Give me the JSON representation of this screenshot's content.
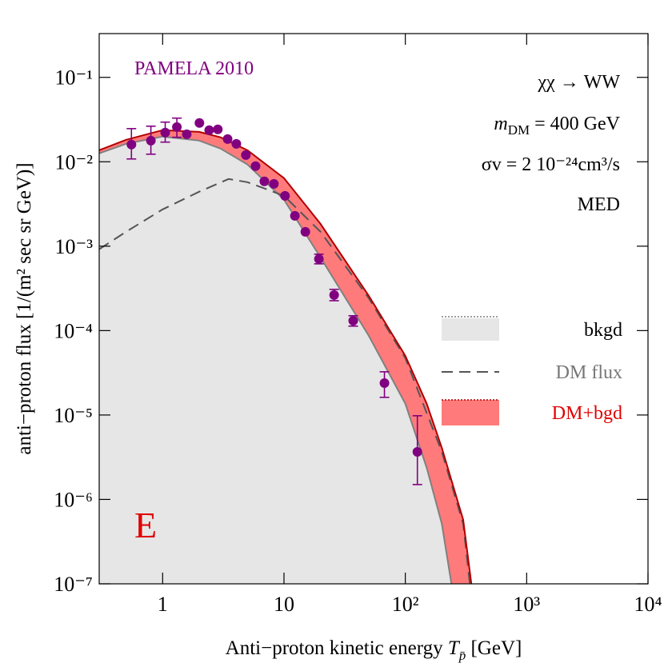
{
  "chart_data": {
    "type": "line",
    "xlog": true,
    "ylog": true,
    "xlim": [
      0.3,
      10000
    ],
    "ylim": [
      1e-07,
      0.33
    ],
    "xticks": [
      1,
      10,
      {
        "value": 100,
        "label": "10²"
      },
      {
        "value": 1000,
        "label": "10³"
      },
      {
        "value": 10000,
        "label": "10⁴"
      }
    ],
    "yticks": [
      {
        "value": 1e-07,
        "label": "10⁻⁷"
      },
      {
        "value": 1e-06,
        "label": "10⁻⁶"
      },
      {
        "value": 1e-05,
        "label": "10⁻⁵"
      },
      {
        "value": 0.0001,
        "label": "10⁻⁴"
      },
      {
        "value": 0.001,
        "label": "10⁻³"
      },
      {
        "value": 0.01,
        "label": "10⁻²"
      },
      {
        "value": 0.1,
        "label": "10⁻¹"
      }
    ],
    "x_label": [
      "Anti−proton kinetic energy ",
      "T",
      "p̄",
      " [GeV]"
    ],
    "y_label": "anti−proton flux [1/(m² sec sr GeV)]",
    "annotations": {
      "process": "χχ → WW",
      "mass": [
        "m",
        "DM",
        " = 400 GeV"
      ],
      "cross_section": "σv = 2 10⁻²⁴cm³/s",
      "propagation": "MED",
      "panel": "E"
    },
    "series": [
      {
        "name": "bkgd",
        "color": "#e6e6e6",
        "line_color": "#808080",
        "style": "fill",
        "x": [
          0.3,
          0.5,
          1,
          2,
          3,
          5,
          10,
          20,
          50,
          100,
          150,
          200,
          240
        ],
        "values": [
          0.01257,
          0.01633,
          0.0199,
          0.01783,
          0.01433,
          0.00927,
          0.00355,
          0.000737,
          8.68e-05,
          1.36e-05,
          2.37e-06,
          5.14e-07,
          1e-07
        ]
      },
      {
        "name": "DM flux",
        "color": "#555555",
        "style": "dashed",
        "x": [
          0.3,
          0.5,
          1,
          2,
          3.5,
          5,
          10,
          20,
          50,
          100,
          200,
          300,
          340
        ],
        "values": [
          0.00092,
          0.00148,
          0.00273,
          0.00442,
          0.00625,
          0.00573,
          0.00395,
          0.00148,
          0.000242,
          4.71e-05,
          3.66e-06,
          5.14e-07,
          1e-07
        ]
      },
      {
        "name": "DM+bgd",
        "color": "#ff7b7b",
        "line_color": "#b30000",
        "style": "band",
        "x": [
          0.3,
          0.5,
          1,
          2,
          3,
          5,
          10,
          20,
          50,
          100,
          150,
          200,
          300,
          350
        ],
        "values": [
          0.0137,
          0.0182,
          0.0237,
          0.0226,
          0.0195,
          0.0137,
          0.0064,
          0.00184,
          0.000258,
          5.02e-05,
          1.36e-05,
          4.08e-06,
          5.73e-07,
          1e-07
        ]
      }
    ],
    "data": {
      "label": "PAMELA 2010",
      "color": "#800080",
      "x": [
        0.553,
        0.8,
        1.05,
        1.31,
        1.58,
        2.01,
        2.42,
        2.85,
        3.43,
        4.05,
        4.85,
        5.83,
        6.89,
        8.26,
        10.2,
        12.3,
        15.0,
        19.4,
        25.9,
        37.2,
        67.3,
        125.7
      ],
      "values": [
        0.016,
        0.0178,
        0.0222,
        0.0258,
        0.0212,
        0.0288,
        0.0237,
        0.0242,
        0.0186,
        0.0163,
        0.012,
        0.00887,
        0.00586,
        0.00548,
        0.00395,
        0.00229,
        0.00148,
        0.000705,
        0.000264,
        0.000131,
        2.39e-05,
        3.66e-06
      ],
      "lower": [
        0.0108,
        0.0123,
        0.0171,
        0.0195,
        null,
        null,
        null,
        null,
        null,
        null,
        null,
        null,
        null,
        null,
        null,
        null,
        null,
        0.000618,
        0.000226,
        0.000113,
        1.62e-05,
        1.5e-06
      ],
      "upper": [
        0.0247,
        0.0264,
        0.0295,
        0.0329,
        null,
        null,
        null,
        null,
        null,
        null,
        null,
        null,
        null,
        null,
        null,
        null,
        null,
        0.000804,
        0.000308,
        0.00015,
        3.25e-05,
        9.8e-06
      ]
    }
  }
}
